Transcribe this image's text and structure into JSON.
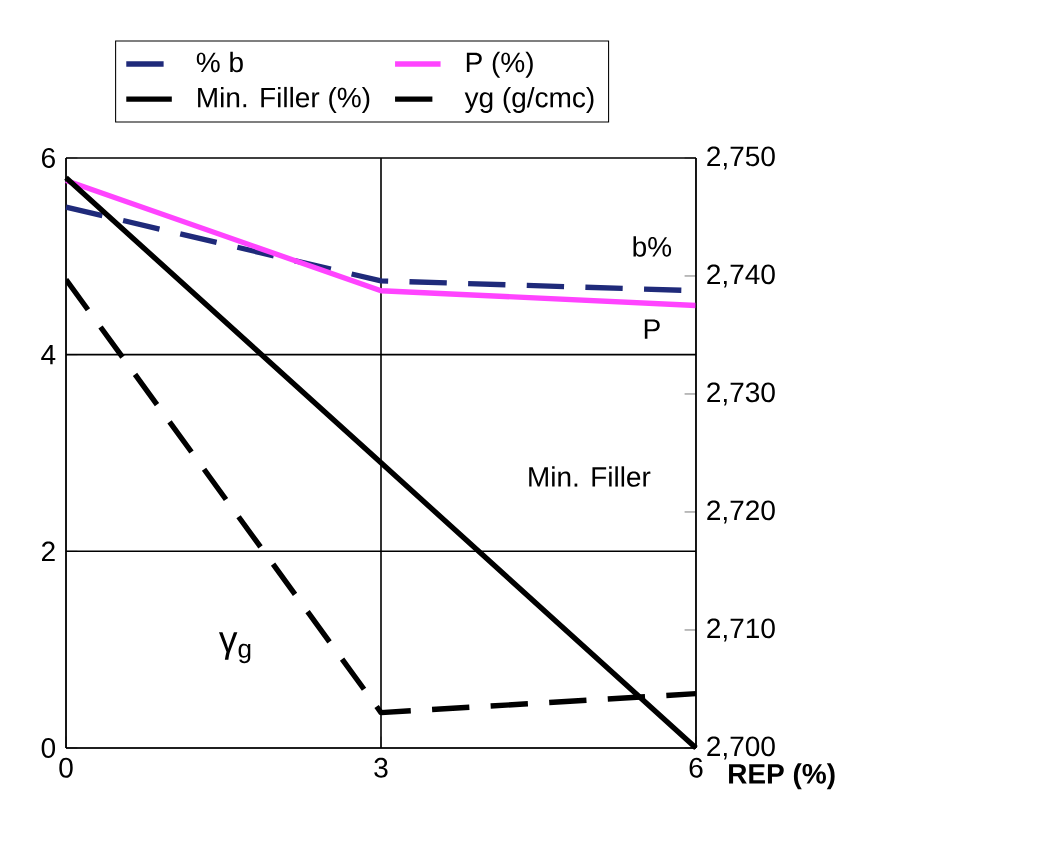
{
  "chart_data": {
    "type": "line",
    "xlabel": "REP (%)",
    "x": [
      0,
      3,
      6
    ],
    "series": [
      {
        "name": "% b",
        "color": "#1f2a7a",
        "values": [
          5.5,
          4.75,
          4.65
        ],
        "line_style": "dashed"
      },
      {
        "name": "P (%)",
        "color": "#ff44ff",
        "values": [
          5.77,
          4.65,
          4.5
        ],
        "line_style": "solid"
      },
      {
        "name": "Min. Filler (%)",
        "color": "#000000",
        "values": [
          5.8,
          2.9,
          0
        ],
        "line_style": "solid"
      },
      {
        "name": "yg (g/cmc)",
        "color": "#000000",
        "values": [
          2739.7,
          2703,
          2704.6
        ],
        "line_style": "dashed",
        "axis": "y2"
      }
    ],
    "xlim": [
      0,
      6
    ],
    "xticks": [
      0,
      3,
      6
    ],
    "ylim": [
      0,
      6
    ],
    "yticks": [
      0,
      2,
      4,
      6
    ],
    "y2lim": [
      2700,
      2750
    ],
    "y2ticks": [
      {
        "value": 2700,
        "label": "2,700"
      },
      {
        "value": 2710,
        "label": "2,710"
      },
      {
        "value": 2720,
        "label": "2,720"
      },
      {
        "value": 2730,
        "label": "2,730"
      },
      {
        "value": 2740,
        "label": "2,740"
      },
      {
        "value": 2750,
        "label": "2,750"
      }
    ],
    "annotations": [
      "b%",
      "P",
      "Min. Filler",
      "γ$_{g}$"
    ],
    "grid": true,
    "legend": "top",
    "marker": "none"
  }
}
